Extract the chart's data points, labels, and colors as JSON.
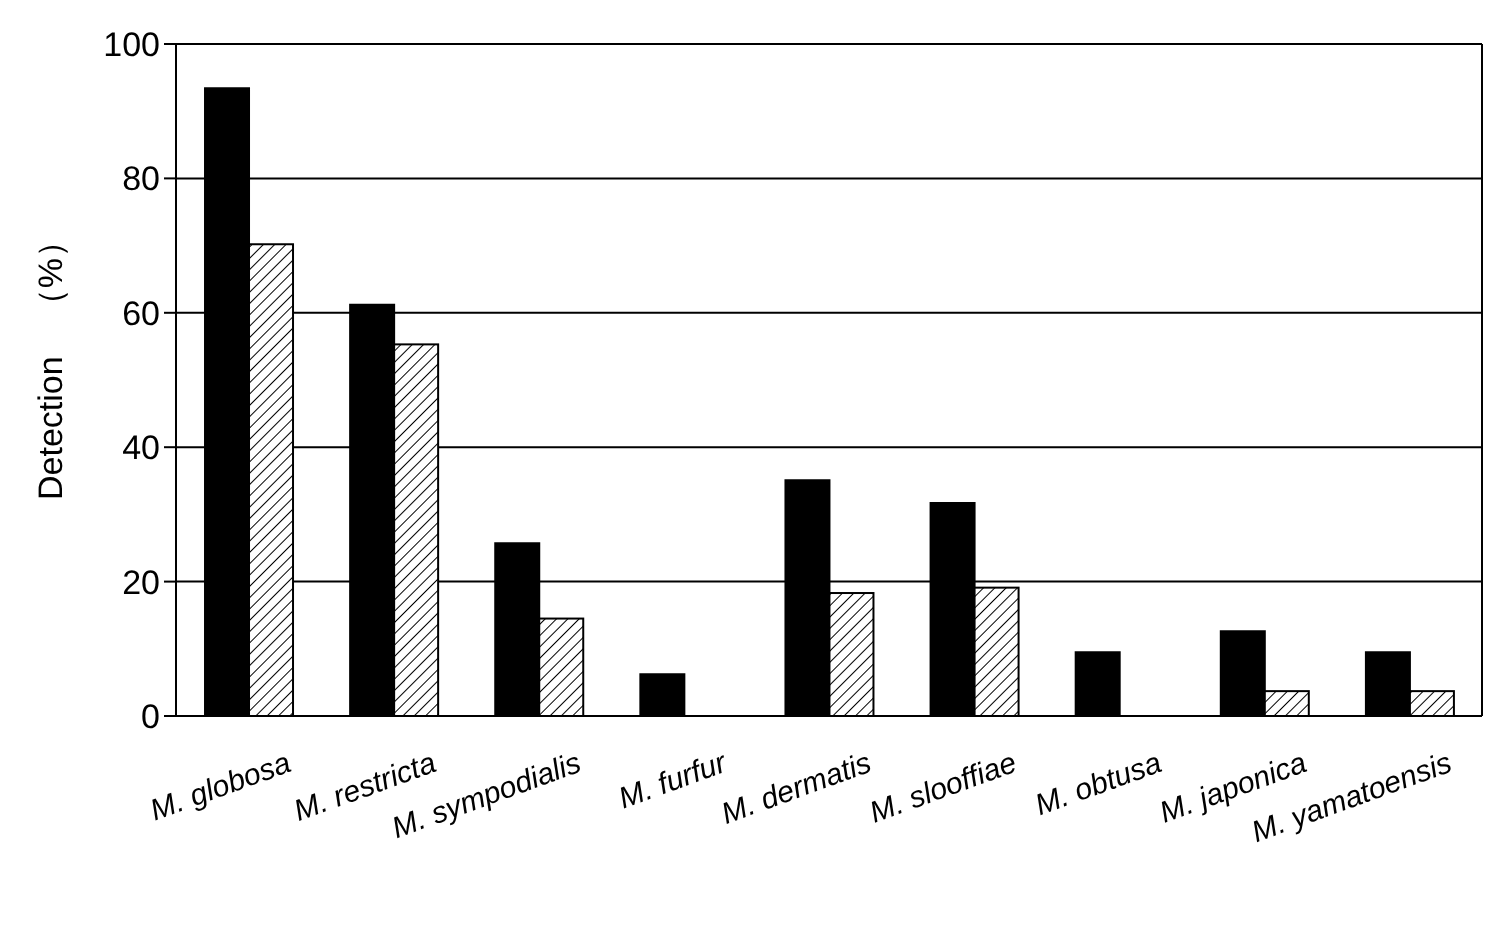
{
  "chart_data": {
    "type": "bar",
    "ylabel": "Detection　（%）",
    "categories": [
      "M. globosa",
      "M. restricta",
      "M. sympodialis",
      "M. furfur",
      "M. dermatis",
      "M. slooffiae",
      "M. obtusa",
      "M. japonica",
      "M. yamatoensis"
    ],
    "series": [
      {
        "color": "#000000",
        "values": [
          93.4,
          61.2,
          25.7,
          6.2,
          35.1,
          31.7,
          9.5,
          12.6,
          9.5
        ]
      },
      {
        "color": "#000000",
        "values": [
          70.2,
          55.3,
          14.5,
          0,
          18.3,
          19.1,
          0,
          3.7,
          3.7
        ]
      }
    ],
    "ylim": [
      0,
      100
    ],
    "yticks": [
      0,
      20,
      40,
      60,
      80,
      100
    ],
    "grid": "y",
    "legend": false
  }
}
